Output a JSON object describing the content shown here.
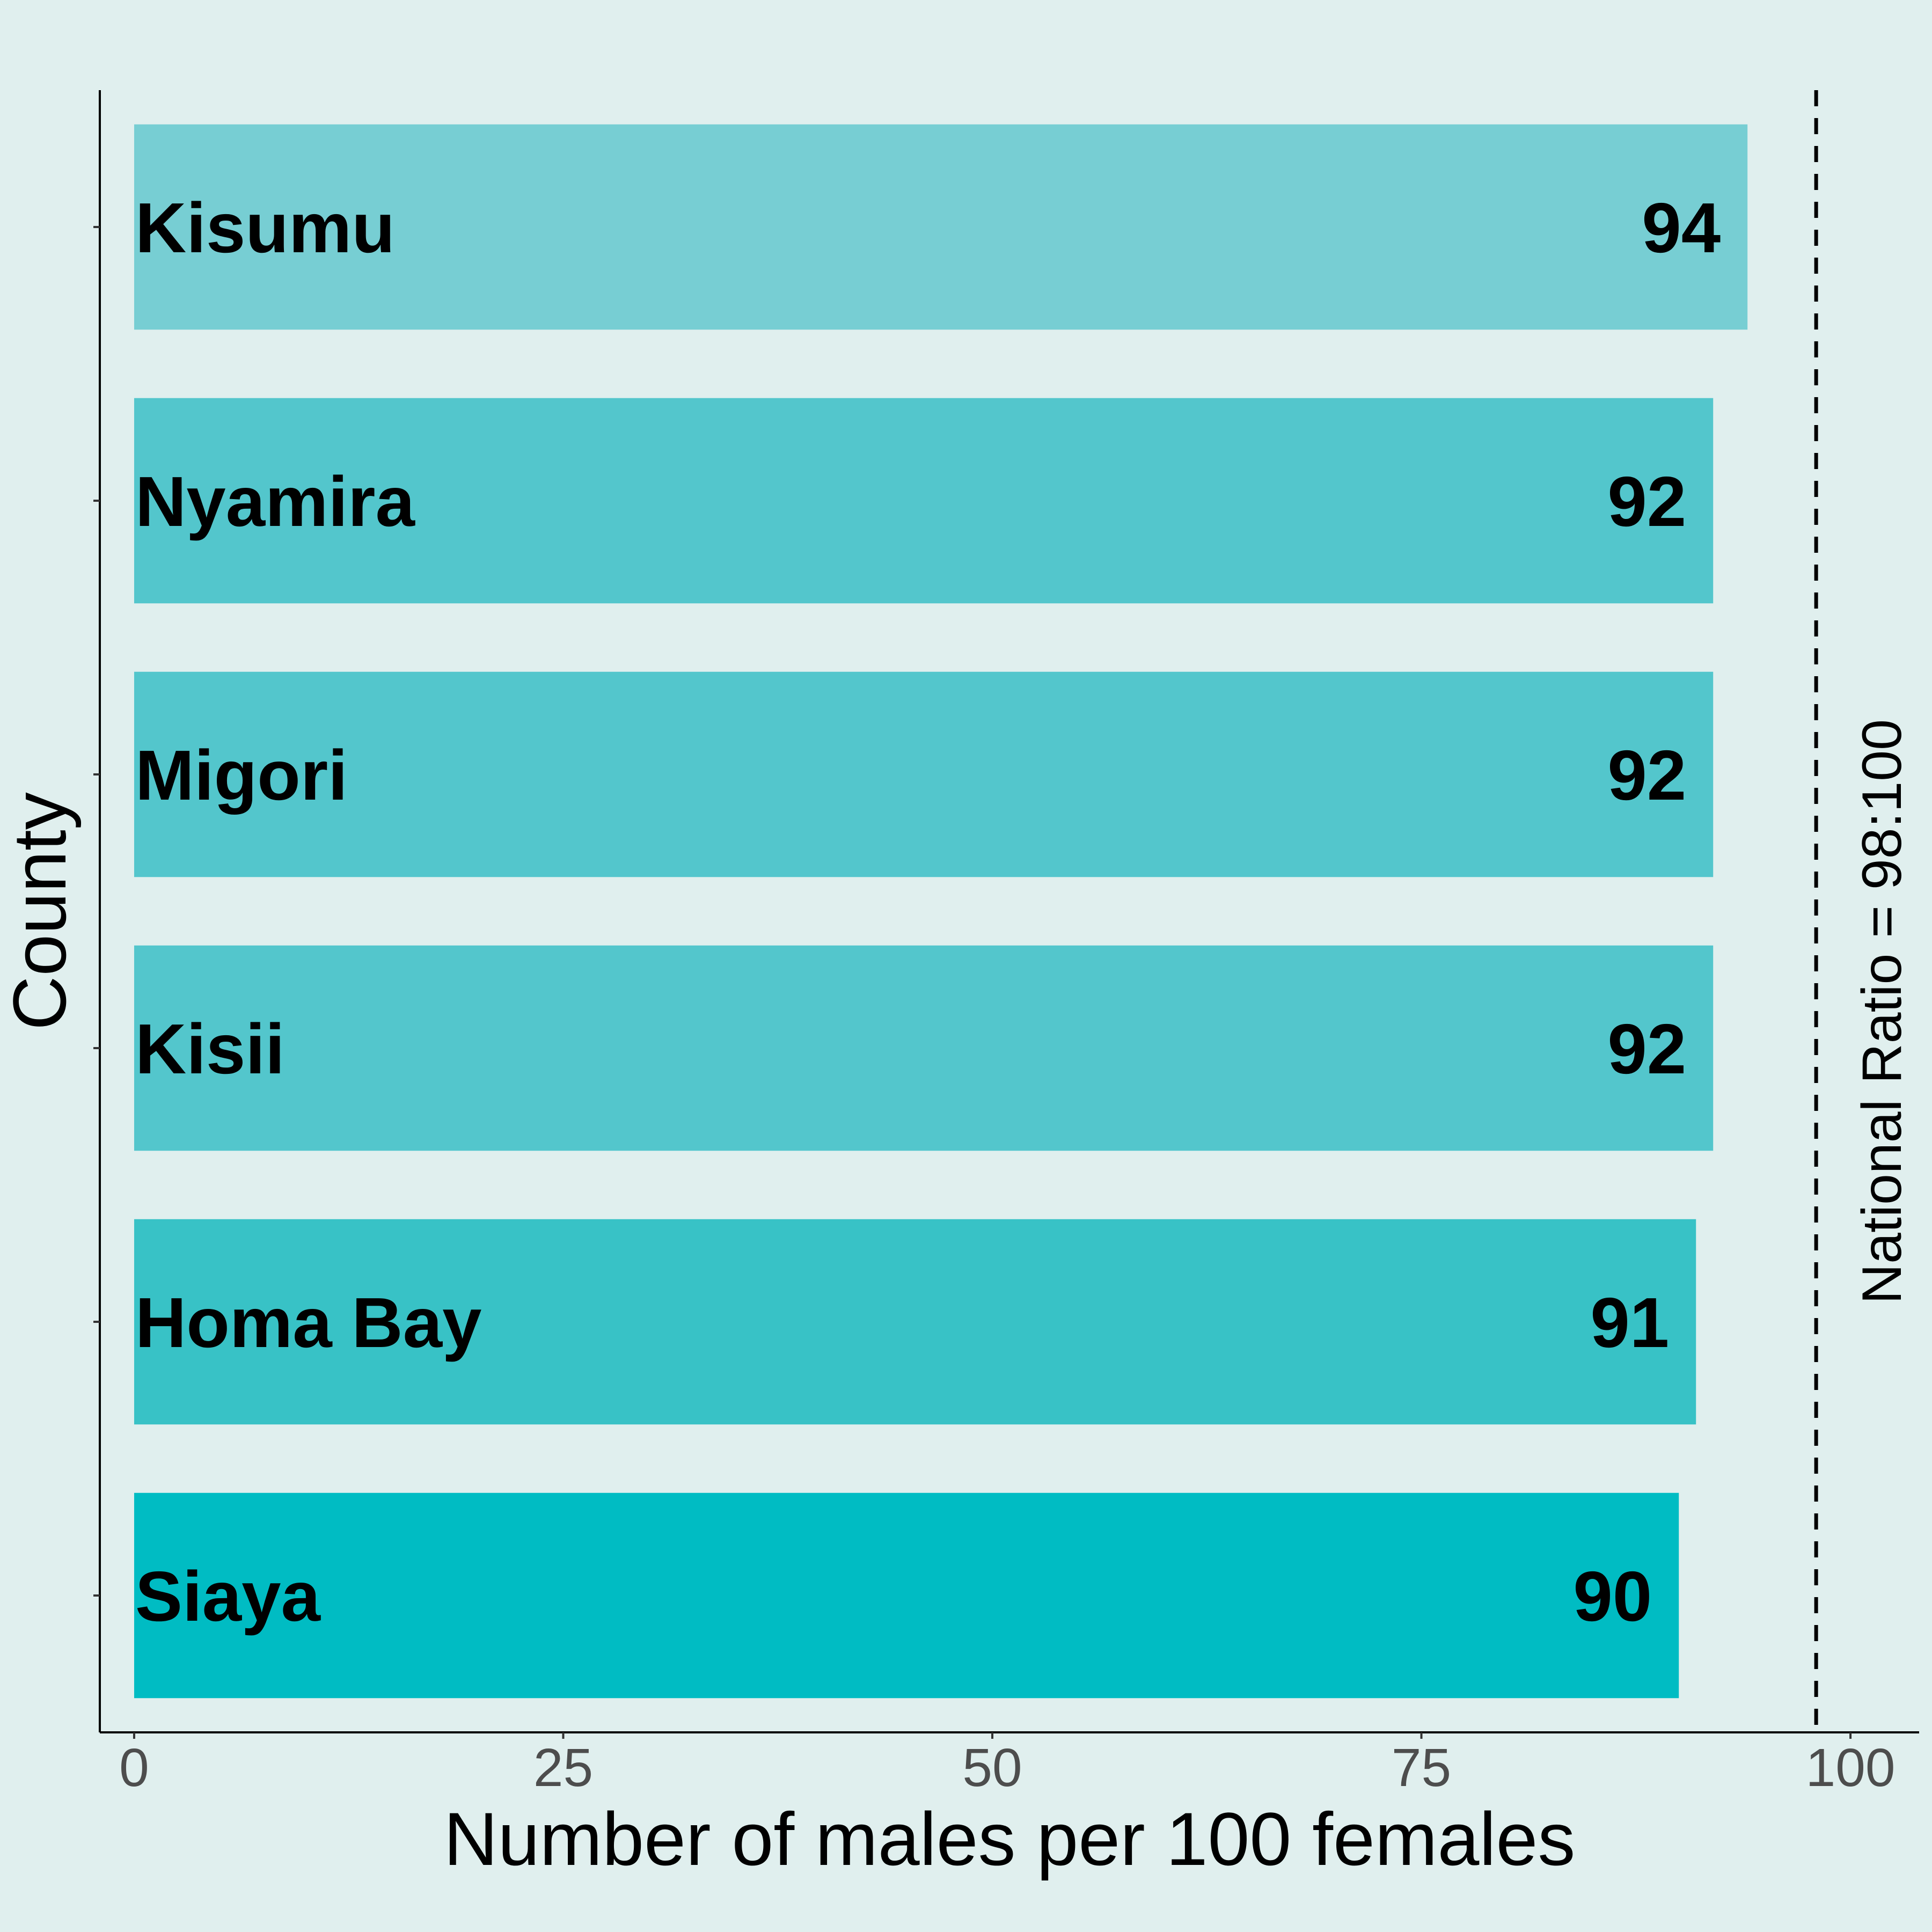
{
  "chart_data": {
    "type": "bar",
    "orientation": "horizontal",
    "categories": [
      "Kisumu",
      "Nyamira",
      "Migori",
      "Kisii",
      "Homa Bay",
      "Siaya"
    ],
    "values": [
      94,
      92,
      92,
      92,
      91,
      90
    ],
    "value_labels": [
      "94",
      "92",
      "92",
      "92",
      "91",
      "90"
    ],
    "bar_colors": [
      "#77ced3",
      "#53c6cc",
      "#53c6cc",
      "#53c6cc",
      "#38c2c6",
      "#00bcc3"
    ],
    "xlabel": "Number of males per 100 females",
    "ylabel": "County",
    "xlim": [
      -2,
      104
    ],
    "xticks": [
      0,
      25,
      50,
      75,
      100
    ],
    "xtick_labels": [
      "0",
      "25",
      "50",
      "75",
      "100"
    ],
    "reference_line": {
      "x": 98,
      "style": "dashed",
      "label": "National Ratio = 98:100"
    },
    "grid": false,
    "legend": "none"
  },
  "colors": {
    "background": "#e0efee",
    "axis": "#000000",
    "tick_text": "#4d4d4d"
  }
}
